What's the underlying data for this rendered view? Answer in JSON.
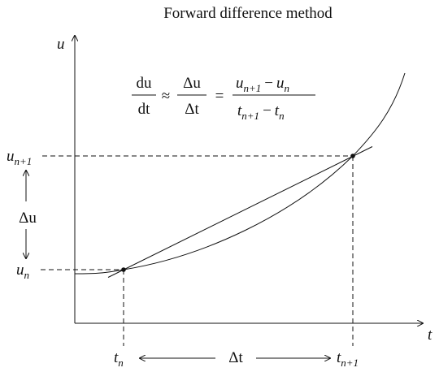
{
  "title": "Forward difference method",
  "axes": {
    "y_label": "u",
    "x_label": "t"
  },
  "labels": {
    "u_next": {
      "base": "u",
      "sub": "n+1"
    },
    "u_now": {
      "base": "u",
      "sub": "n"
    },
    "delta_u": "Δu",
    "t_now": {
      "base": "t",
      "sub": "n"
    },
    "t_next": {
      "base": "t",
      "sub": "n+1"
    },
    "delta_t": "Δt"
  },
  "formula": {
    "lhs_num": "du",
    "lhs_den": "dt",
    "approx": "≈",
    "mid_num": "Δu",
    "mid_den": "Δt",
    "equals": "=",
    "rhs_num": {
      "a": "u",
      "a_sub": "n+1",
      "op": "−",
      "b": "u",
      "b_sub": "n"
    },
    "rhs_den": {
      "a": "t",
      "a_sub": "n+1",
      "op": "−",
      "b": "t",
      "b_sub": "n"
    }
  }
}
